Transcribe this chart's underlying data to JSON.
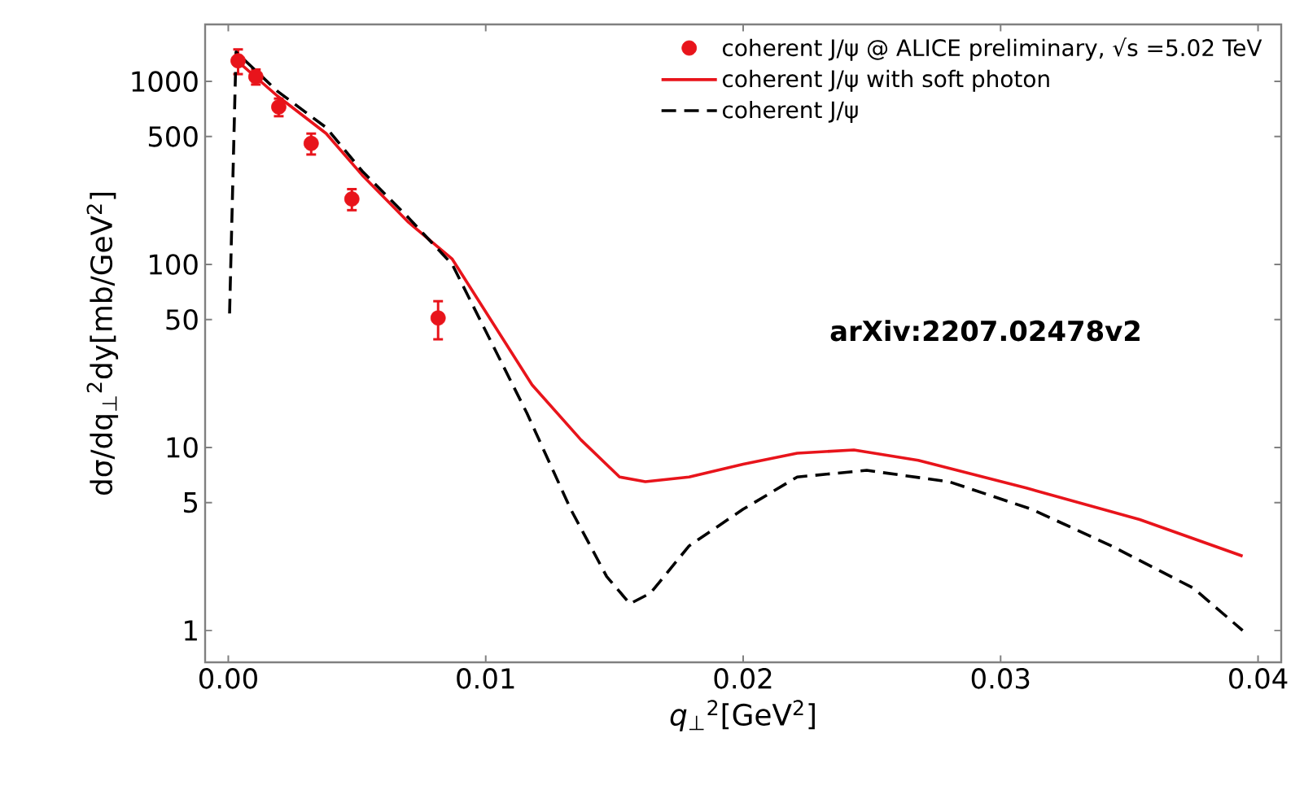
{
  "chart_data": {
    "type": "line",
    "xlabel": "*q*$_{⊥}$$^{2}$[GeV$^{2}$]",
    "ylabel": "dσ/dq$_{⊥}$$^{2}$dy[mb/GeV$^{2}$]",
    "log": "y",
    "xlim": [
      -0.0009,
      0.0409
    ],
    "ylim": [
      0.67,
      2050
    ],
    "xticks": [
      {
        "value": 0,
        "label": "0.00"
      },
      {
        "value": 0.01,
        "label": "0.01"
      },
      {
        "value": 0.02,
        "label": "0.02"
      },
      {
        "value": 0.03,
        "label": "0.03"
      },
      {
        "value": 0.04,
        "label": "0.04"
      }
    ],
    "yticks": [
      1,
      5,
      10,
      50,
      100,
      500,
      1000
    ],
    "grid": false,
    "legend": "top right",
    "annotations": [
      "arXiv:2207.02478v2"
    ],
    "series": [
      {
        "type": "scatter",
        "name": "coherent J/ψ @ ALICE preliminary, √s =5.02 TeV",
        "color": "#e8141b",
        "marker": "circle",
        "x": [
          0.00038,
          0.00107,
          0.00196,
          0.00322,
          0.0048,
          0.00815
        ],
        "values": [
          1297,
          1062,
          726,
          459,
          228,
          51
        ],
        "errors": [
          200,
          100,
          80,
          60,
          30,
          12
        ]
      },
      {
        "name": "coherent J/ψ with soft photon",
        "color": "#e8141b",
        "line_style": "solid",
        "x": [
          0.0002,
          0.0019,
          0.0038,
          0.0052,
          0.007,
          0.0087,
          0.0118,
          0.0137,
          0.0152,
          0.0162,
          0.0179,
          0.02,
          0.0221,
          0.0243,
          0.0268,
          0.031,
          0.0354,
          0.0394
        ],
        "values": [
          1350,
          835,
          520,
          308,
          170,
          107,
          22,
          11,
          6.9,
          6.5,
          6.9,
          8.1,
          9.3,
          9.7,
          8.5,
          6.0,
          4.04,
          2.55
        ]
      },
      {
        "name": "coherent J/ψ",
        "color": "#000000",
        "line_style": "dashed",
        "x": [
          5e-05,
          0.0003,
          0.0019,
          0.0038,
          0.0052,
          0.007,
          0.0087,
          0.0116,
          0.0133,
          0.0147,
          0.0156,
          0.0164,
          0.0179,
          0.02,
          0.0221,
          0.0248,
          0.028,
          0.0312,
          0.0343,
          0.0375,
          0.0394
        ],
        "values": [
          54,
          1450,
          887,
          560,
          324,
          180,
          100,
          15.4,
          4.6,
          1.97,
          1.4,
          1.6,
          2.9,
          4.6,
          6.9,
          7.5,
          6.5,
          4.6,
          2.9,
          1.7,
          1.0
        ]
      }
    ]
  }
}
